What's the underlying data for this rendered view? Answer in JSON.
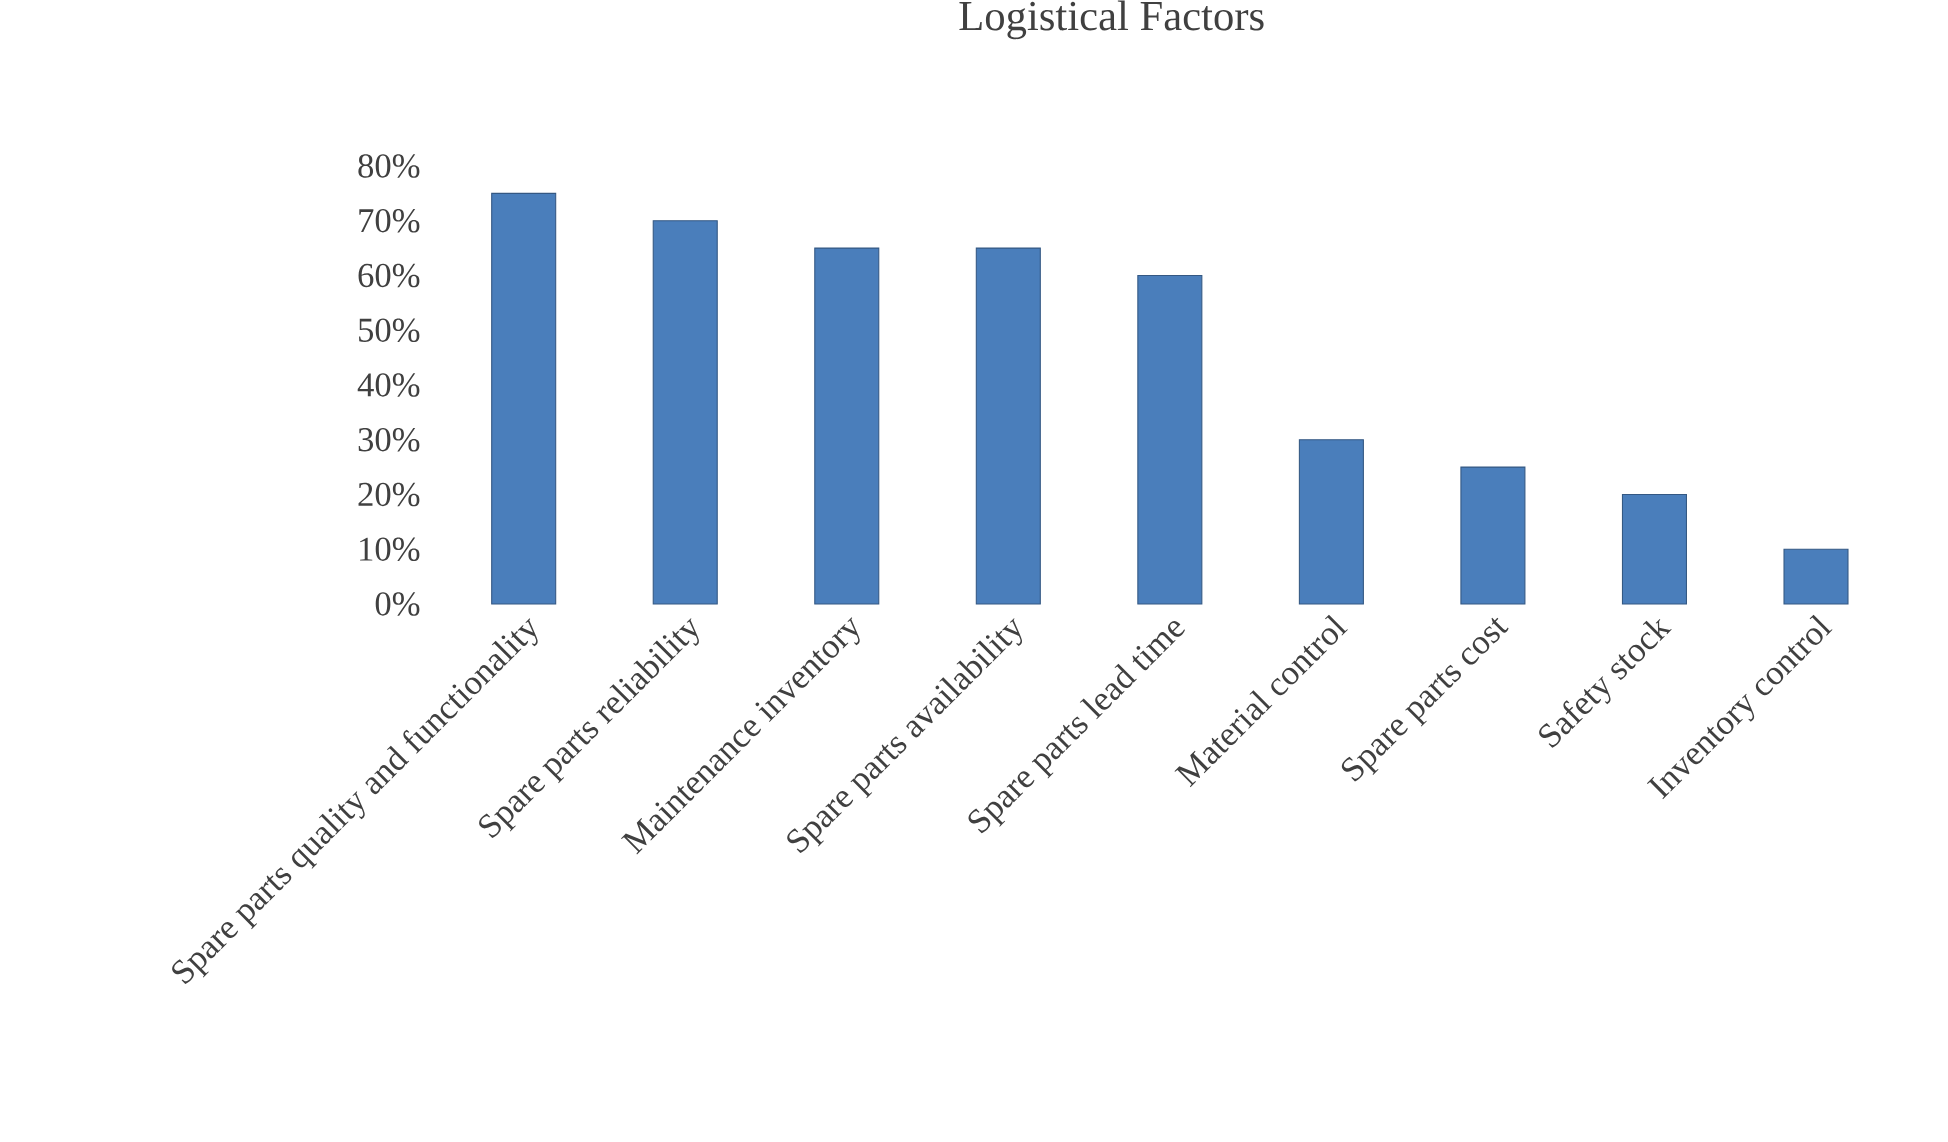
{
  "chart_data": {
    "type": "bar",
    "title": "Logistical Factors",
    "categories": [
      "Spare parts quality and functionality",
      "Spare parts reliability",
      "Maintenance inventory",
      "Spare parts availability",
      "Spare parts lead time",
      "Material control",
      "Spare parts cost",
      "Safety stock",
      "Inventory control"
    ],
    "values": [
      75,
      70,
      65,
      65,
      60,
      30,
      25,
      20,
      10
    ],
    "color": "#4a7ebb",
    "ylim": [
      0,
      80
    ],
    "yticks": [
      {
        "value": 0,
        "label": "0%"
      },
      {
        "value": 10,
        "label": "10%"
      },
      {
        "value": 20,
        "label": "20%"
      },
      {
        "value": 30,
        "label": "30%"
      },
      {
        "value": 40,
        "label": "40%"
      },
      {
        "value": 50,
        "label": "50%"
      },
      {
        "value": 60,
        "label": "60%"
      },
      {
        "value": 70,
        "label": "70%"
      },
      {
        "value": 80,
        "label": "80%"
      }
    ]
  }
}
